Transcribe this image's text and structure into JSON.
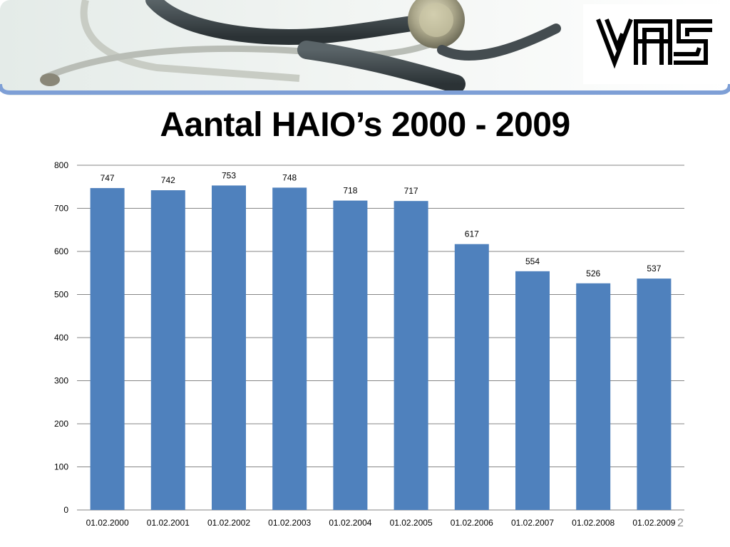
{
  "slide": {
    "title": "Aantal HAIO’s 2000 - 2009",
    "logo_text": "VAS",
    "page_number": "2"
  },
  "colors": {
    "bar": "#4f81bd",
    "banner_border": "#7e9fd6",
    "gridline": "#868686",
    "slide_number": "#8a8a8a"
  },
  "chart_data": {
    "type": "bar",
    "categories": [
      "01.02.2000",
      "01.02.2001",
      "01.02.2002",
      "01.02.2003",
      "01.02.2004",
      "01.02.2005",
      "01.02.2006",
      "01.02.2007",
      "01.02.2008",
      "01.02.2009"
    ],
    "values": [
      747,
      742,
      753,
      748,
      718,
      717,
      617,
      554,
      526,
      537
    ],
    "ylim": [
      0,
      800
    ],
    "yticks": [
      0,
      100,
      200,
      300,
      400,
      500,
      600,
      700,
      800
    ],
    "grid": true,
    "data_labels": true
  }
}
